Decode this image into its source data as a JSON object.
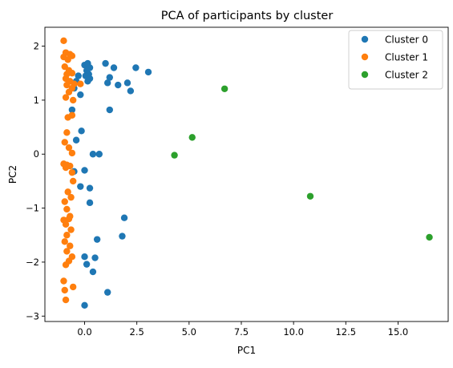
{
  "chart_data": {
    "type": "scatter",
    "title": "PCA of participants by cluster",
    "xlabel": "PC1",
    "ylabel": "PC2",
    "xlim": [
      -1.9,
      17.4
    ],
    "ylim": [
      -3.1,
      2.35
    ],
    "xticks": [
      0.0,
      2.5,
      5.0,
      7.5,
      10.0,
      12.5,
      15.0
    ],
    "xtick_labels": [
      "0.0",
      "2.5",
      "5.0",
      "7.5",
      "10.0",
      "12.5",
      "15.0"
    ],
    "yticks": [
      -3,
      -2,
      -1,
      0,
      1,
      2
    ],
    "ytick_labels": [
      "−3",
      "−2",
      "−1",
      "0",
      "1",
      "2"
    ],
    "grid": false,
    "legend": "top-right",
    "series": [
      {
        "name": "Cluster 0",
        "color": "#1f77b4",
        "points": [
          [
            0.0,
            1.65
          ],
          [
            0.15,
            1.68
          ],
          [
            0.25,
            1.6
          ],
          [
            0.1,
            1.55
          ],
          [
            0.2,
            1.48
          ],
          [
            0.05,
            1.45
          ],
          [
            0.15,
            1.35
          ],
          [
            0.25,
            1.4
          ],
          [
            -0.3,
            1.45
          ],
          [
            -0.4,
            1.35
          ],
          [
            -0.5,
            1.22
          ],
          [
            -0.2,
            1.1
          ],
          [
            -0.6,
            0.82
          ],
          [
            1.0,
            1.68
          ],
          [
            1.4,
            1.6
          ],
          [
            1.2,
            1.42
          ],
          [
            1.1,
            1.32
          ],
          [
            1.6,
            1.28
          ],
          [
            2.05,
            1.32
          ],
          [
            2.2,
            1.17
          ],
          [
            2.45,
            1.6
          ],
          [
            3.05,
            1.52
          ],
          [
            1.2,
            0.82
          ],
          [
            -0.15,
            0.43
          ],
          [
            -0.4,
            0.26
          ],
          [
            0.4,
            0.0
          ],
          [
            0.7,
            0.0
          ],
          [
            -0.5,
            -0.32
          ],
          [
            0.0,
            -0.3
          ],
          [
            -0.2,
            -0.6
          ],
          [
            0.25,
            -0.63
          ],
          [
            0.25,
            -0.9
          ],
          [
            1.9,
            -1.18
          ],
          [
            1.8,
            -1.52
          ],
          [
            0.6,
            -1.58
          ],
          [
            0.0,
            -1.9
          ],
          [
            0.5,
            -1.92
          ],
          [
            0.1,
            -2.04
          ],
          [
            0.4,
            -2.18
          ],
          [
            1.1,
            -2.56
          ],
          [
            0.0,
            -2.8
          ]
        ]
      },
      {
        "name": "Cluster 1",
        "color": "#ff7f0e",
        "points": [
          [
            -1.0,
            2.1
          ],
          [
            -0.9,
            1.88
          ],
          [
            -0.7,
            1.85
          ],
          [
            -1.0,
            1.8
          ],
          [
            -0.8,
            1.75
          ],
          [
            -0.6,
            1.82
          ],
          [
            -0.95,
            1.62
          ],
          [
            -0.75,
            1.55
          ],
          [
            -0.85,
            1.48
          ],
          [
            -0.6,
            1.5
          ],
          [
            -0.9,
            1.4
          ],
          [
            -0.7,
            1.35
          ],
          [
            -0.5,
            1.3
          ],
          [
            -0.85,
            1.28
          ],
          [
            -0.6,
            1.22
          ],
          [
            -0.75,
            1.15
          ],
          [
            -0.9,
            1.05
          ],
          [
            -0.2,
            1.3
          ],
          [
            -0.55,
            1.0
          ],
          [
            -0.8,
            0.68
          ],
          [
            -0.6,
            0.72
          ],
          [
            -0.85,
            0.4
          ],
          [
            -0.95,
            0.22
          ],
          [
            -0.75,
            0.12
          ],
          [
            -0.6,
            0.02
          ],
          [
            -1.0,
            -0.18
          ],
          [
            -0.85,
            -0.2
          ],
          [
            -0.9,
            -0.25
          ],
          [
            -0.7,
            -0.22
          ],
          [
            -0.6,
            -0.34
          ],
          [
            -0.55,
            -0.5
          ],
          [
            -0.8,
            -0.7
          ],
          [
            -0.65,
            -0.8
          ],
          [
            -0.95,
            -0.88
          ],
          [
            -0.85,
            -1.02
          ],
          [
            -0.7,
            -1.15
          ],
          [
            -1.0,
            -1.22
          ],
          [
            -0.9,
            -1.3
          ],
          [
            -0.75,
            -1.2
          ],
          [
            -0.65,
            -1.4
          ],
          [
            -0.85,
            -1.5
          ],
          [
            -0.95,
            -1.62
          ],
          [
            -0.7,
            -1.7
          ],
          [
            -0.85,
            -1.8
          ],
          [
            -0.6,
            -1.9
          ],
          [
            -0.75,
            -1.98
          ],
          [
            -0.9,
            -2.05
          ],
          [
            -1.0,
            -2.35
          ],
          [
            -0.95,
            -2.52
          ],
          [
            -0.55,
            -2.46
          ],
          [
            -0.9,
            -2.7
          ]
        ]
      },
      {
        "name": "Cluster 2",
        "color": "#2ca02c",
        "points": [
          [
            6.7,
            1.21
          ],
          [
            5.15,
            0.31
          ],
          [
            4.3,
            -0.02
          ],
          [
            10.8,
            -0.78
          ],
          [
            16.5,
            -1.54
          ]
        ]
      }
    ]
  }
}
